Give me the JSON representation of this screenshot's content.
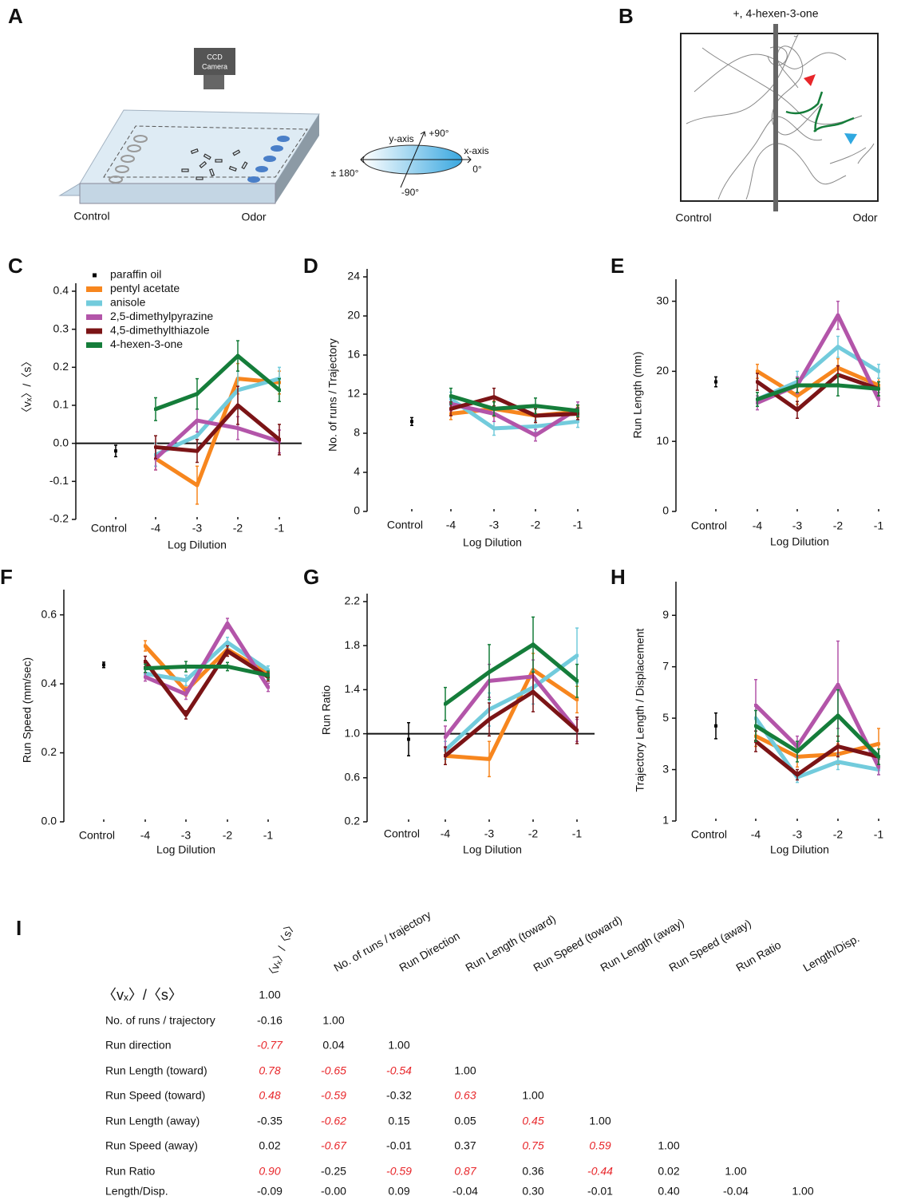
{
  "panels": [
    {
      "label": "A",
      "texts": [
        "CCD",
        "Camera",
        "y-axis",
        "+90°",
        "x-axis",
        "± 180°",
        "0°",
        "-90°",
        "Control",
        "Odor"
      ]
    },
    {
      "label": "B",
      "title": "+, 4-hexen-3-one",
      "left": "Control",
      "right": "Odor"
    }
  ],
  "chart_data": [
    {
      "type": "line",
      "panel": "C",
      "ylabel": "〈vₓ〉/〈s〉",
      "xlabel": "Log Dilution",
      "categories": [
        "Control",
        "-4",
        "-3",
        "-2",
        "-1"
      ],
      "ylim": [
        -0.2,
        0.4
      ],
      "yticks": [
        -0.2,
        -0.1,
        {
          "value": 0,
          "label": "0.0"
        },
        0.1,
        0.2,
        0.3,
        0.4
      ],
      "hline": 0,
      "legend": "upper left",
      "series": [
        {
          "name": "paraffin oil",
          "color": "#000000",
          "values": [
            -0.02,
            null,
            null,
            null,
            null
          ],
          "errors": [
            0.015,
            null,
            null,
            null,
            null
          ]
        },
        {
          "name": "pentyl acetate",
          "color": "#f7861e",
          "values": [
            null,
            -0.04,
            -0.11,
            0.17,
            0.16
          ],
          "errors": [
            null,
            0.03,
            0.05,
            0.04,
            0.03
          ]
        },
        {
          "name": "anisole",
          "color": "#72cbdc",
          "values": [
            null,
            -0.03,
            0.02,
            0.14,
            0.17
          ],
          "errors": [
            null,
            0.03,
            0.04,
            0.05,
            0.03
          ]
        },
        {
          "name": "2,5-dimethylpyrazine",
          "color": "#b355a9",
          "values": [
            null,
            -0.04,
            0.06,
            0.04,
            0.005
          ],
          "errors": [
            null,
            0.03,
            0.03,
            0.03,
            0.03
          ]
        },
        {
          "name": "4,5-dimethylthiazole",
          "color": "#7b1416",
          "values": [
            null,
            -0.01,
            -0.02,
            0.1,
            0.01
          ],
          "errors": [
            null,
            0.03,
            0.03,
            0.05,
            0.04
          ]
        },
        {
          "name": "4-hexen-3-one",
          "color": "#157d3a",
          "values": [
            null,
            0.09,
            0.13,
            0.23,
            0.14
          ],
          "errors": [
            null,
            0.03,
            0.04,
            0.04,
            0.03
          ]
        }
      ]
    },
    {
      "type": "line",
      "panel": "D",
      "ylabel": "No. of runs / Trajectory",
      "xlabel": "Log Dilution",
      "categories": [
        "Control",
        "-4",
        "-3",
        "-2",
        "-1"
      ],
      "ylim": [
        0,
        24
      ],
      "yticks": [
        0,
        4,
        8,
        12,
        16,
        20,
        24
      ],
      "series": [
        {
          "color": "#000000",
          "values": [
            9.2,
            null,
            null,
            null,
            null
          ],
          "errors": [
            0.4,
            null,
            null,
            null,
            null
          ]
        },
        {
          "color": "#f7861e",
          "values": [
            null,
            10,
            10.5,
            9.8,
            10.2
          ],
          "errors": [
            null,
            0.6,
            0.8,
            0.7,
            0.6
          ]
        },
        {
          "color": "#72cbdc",
          "values": [
            null,
            11.5,
            8.5,
            8.7,
            9.2
          ],
          "errors": [
            null,
            0.7,
            0.7,
            0.6,
            0.6
          ]
        },
        {
          "color": "#b355a9",
          "values": [
            null,
            11,
            10,
            7.8,
            10.5
          ],
          "errors": [
            null,
            0.7,
            0.8,
            0.6,
            0.7
          ]
        },
        {
          "color": "#7b1416",
          "values": [
            null,
            10.5,
            11.7,
            9.8,
            10
          ],
          "errors": [
            null,
            0.7,
            0.9,
            0.7,
            0.6
          ]
        },
        {
          "color": "#157d3a",
          "values": [
            null,
            11.8,
            10.5,
            10.8,
            10.3
          ],
          "errors": [
            null,
            0.8,
            0.7,
            0.8,
            0.6
          ]
        }
      ]
    },
    {
      "type": "line",
      "panel": "E",
      "ylabel": "Run Length (mm)",
      "xlabel": "Log Dilution",
      "categories": [
        "Control",
        "-4",
        "-3",
        "-2",
        "-1"
      ],
      "ylim": [
        0,
        32
      ],
      "yticks": [
        0,
        10,
        20,
        30
      ],
      "series": [
        {
          "color": "#000000",
          "values": [
            18.5,
            null,
            null,
            null,
            null
          ],
          "errors": [
            0.7,
            null,
            null,
            null,
            null
          ]
        },
        {
          "color": "#f7861e",
          "values": [
            null,
            20,
            16.5,
            20.5,
            18
          ],
          "errors": [
            null,
            1,
            1.2,
            1.3,
            1
          ]
        },
        {
          "color": "#72cbdc",
          "values": [
            null,
            16,
            18.5,
            23.5,
            20
          ],
          "errors": [
            null,
            1,
            1.5,
            1.5,
            1
          ]
        },
        {
          "color": "#b355a9",
          "values": [
            null,
            15.5,
            18,
            28,
            16
          ],
          "errors": [
            null,
            1,
            1.2,
            2,
            1
          ]
        },
        {
          "color": "#7b1416",
          "values": [
            null,
            18.5,
            14.5,
            19.5,
            17.5
          ],
          "errors": [
            null,
            1.2,
            1.2,
            1.3,
            1
          ]
        },
        {
          "color": "#157d3a",
          "values": [
            null,
            16,
            18,
            18,
            17.5
          ],
          "errors": [
            null,
            1,
            1,
            1.5,
            1
          ]
        }
      ]
    },
    {
      "type": "line",
      "panel": "F",
      "ylabel": "Run Speed (mm/sec)",
      "xlabel": "Log Dilution",
      "categories": [
        "Control",
        "-4",
        "-3",
        "-2",
        "-1"
      ],
      "ylim": [
        0,
        0.65
      ],
      "yticks": [
        {
          "value": 0,
          "label": "0.0"
        },
        0.2,
        0.4,
        0.6
      ],
      "series": [
        {
          "color": "#000000",
          "values": [
            0.455,
            null,
            null,
            null,
            null
          ],
          "errors": [
            0.008,
            null,
            null,
            null,
            null
          ]
        },
        {
          "color": "#f7861e",
          "values": [
            null,
            0.51,
            0.38,
            0.5,
            0.43
          ],
          "errors": [
            null,
            0.015,
            0.015,
            0.015,
            0.012
          ]
        },
        {
          "color": "#72cbdc",
          "values": [
            null,
            0.43,
            0.41,
            0.52,
            0.44
          ],
          "errors": [
            null,
            0.012,
            0.015,
            0.015,
            0.012
          ]
        },
        {
          "color": "#b355a9",
          "values": [
            null,
            0.42,
            0.37,
            0.575,
            0.39
          ],
          "errors": [
            null,
            0.012,
            0.015,
            0.015,
            0.012
          ]
        },
        {
          "color": "#7b1416",
          "values": [
            null,
            0.465,
            0.31,
            0.495,
            0.42
          ],
          "errors": [
            null,
            0.015,
            0.012,
            0.015,
            0.012
          ]
        },
        {
          "color": "#157d3a",
          "values": [
            null,
            0.445,
            0.45,
            0.45,
            0.425
          ],
          "errors": [
            null,
            0.012,
            0.015,
            0.012,
            0.012
          ]
        }
      ]
    },
    {
      "type": "line",
      "panel": "G",
      "ylabel": "Run Ratio",
      "xlabel": "Log Dilution",
      "categories": [
        "Control",
        "-4",
        "-3",
        "-2",
        "-1"
      ],
      "ylim": [
        0.2,
        2.2
      ],
      "yticks": [
        0.2,
        0.6,
        {
          "value": 1,
          "label": "1.0"
        },
        1.4,
        1.8,
        2.2
      ],
      "hline": 1,
      "series": [
        {
          "color": "#000000",
          "values": [
            0.95,
            null,
            null,
            null,
            null
          ],
          "errors": [
            0.15,
            null,
            null,
            null,
            null
          ]
        },
        {
          "color": "#f7861e",
          "values": [
            null,
            0.8,
            0.77,
            1.58,
            1.31
          ],
          "errors": [
            null,
            0.08,
            0.16,
            0.15,
            0.12
          ]
        },
        {
          "color": "#72cbdc",
          "values": [
            null,
            0.85,
            1.22,
            1.42,
            1.71
          ],
          "errors": [
            null,
            0.08,
            0.15,
            0.15,
            0.25
          ]
        },
        {
          "color": "#b355a9",
          "values": [
            null,
            0.97,
            1.48,
            1.52,
            1.03
          ],
          "errors": [
            null,
            0.1,
            0.15,
            0.15,
            0.1
          ]
        },
        {
          "color": "#7b1416",
          "values": [
            null,
            0.8,
            1.13,
            1.38,
            1.03
          ],
          "errors": [
            null,
            0.08,
            0.15,
            0.18,
            0.12
          ]
        },
        {
          "color": "#157d3a",
          "values": [
            null,
            1.27,
            1.56,
            1.81,
            1.48
          ],
          "errors": [
            null,
            0.15,
            0.25,
            0.25,
            0.15
          ]
        }
      ]
    },
    {
      "type": "line",
      "panel": "H",
      "ylabel": "Trajectory Length / Displacement",
      "xlabel": "Log Dilution",
      "categories": [
        "Control",
        "-4",
        "-3",
        "-2",
        "-1"
      ],
      "ylim": [
        1,
        10
      ],
      "yticks": [
        1,
        3,
        5,
        7,
        9
      ],
      "series": [
        {
          "color": "#000000",
          "values": [
            4.7,
            null,
            null,
            null,
            null
          ],
          "errors": [
            0.5,
            null,
            null,
            null,
            null
          ]
        },
        {
          "color": "#f7861e",
          "values": [
            null,
            4.3,
            3.5,
            3.6,
            4
          ],
          "errors": [
            null,
            0.4,
            0.4,
            0.4,
            0.6
          ]
        },
        {
          "color": "#72cbdc",
          "values": [
            null,
            5,
            2.7,
            3.3,
            3
          ],
          "errors": [
            null,
            0.5,
            0.2,
            0.3,
            0.2
          ]
        },
        {
          "color": "#b355a9",
          "values": [
            null,
            5.5,
            3.9,
            6.3,
            3.1
          ],
          "errors": [
            null,
            1,
            0.4,
            1.7,
            0.3
          ]
        },
        {
          "color": "#7b1416",
          "values": [
            null,
            4.1,
            2.8,
            3.9,
            3.5
          ],
          "errors": [
            null,
            0.4,
            0.2,
            0.4,
            0.3
          ]
        },
        {
          "color": "#157d3a",
          "values": [
            null,
            4.7,
            3.7,
            5.1,
            3.5
          ],
          "errors": [
            null,
            0.6,
            0.4,
            1,
            0.3
          ]
        }
      ]
    }
  ],
  "table": {
    "panel": "I",
    "highlight_color": "#e8262a",
    "columns": [
      "〈vₓ〉/〈s〉",
      "No. of runs / trajectory",
      "Run Direction",
      "Run Length (toward)",
      "Run Speed (toward)",
      "Run Length (away)",
      "Run Speed (away)",
      "Run Ratio",
      "Length/Disp."
    ],
    "rows": [
      {
        "label": "〈vₓ〉/〈s〉",
        "cells": [
          "1.00"
        ]
      },
      {
        "label": "No. of runs / trajectory",
        "cells": [
          "-0.16",
          "1.00"
        ]
      },
      {
        "label": "Run direction",
        "cells": [
          {
            "text": "-0.77",
            "highlight": true
          },
          "0.04",
          "1.00"
        ]
      },
      {
        "label": "Run Length (toward)",
        "cells": [
          {
            "text": "0.78",
            "highlight": true
          },
          {
            "text": "-0.65",
            "highlight": true
          },
          {
            "text": "-0.54",
            "highlight": true
          },
          "1.00"
        ]
      },
      {
        "label": "Run Speed (toward)",
        "cells": [
          {
            "text": "0.48",
            "highlight": true
          },
          {
            "text": "-0.59",
            "highlight": true
          },
          "-0.32",
          {
            "text": "0.63",
            "highlight": true
          },
          "1.00"
        ]
      },
      {
        "label": "Run Length (away)",
        "cells": [
          "-0.35",
          {
            "text": "-0.62",
            "highlight": true
          },
          "0.15",
          "0.05",
          {
            "text": "0.45",
            "highlight": true
          },
          "1.00"
        ]
      },
      {
        "label": "Run Speed (away)",
        "cells": [
          "0.02",
          {
            "text": "-0.67",
            "highlight": true
          },
          "-0.01",
          "0.37",
          {
            "text": "0.75",
            "highlight": true
          },
          {
            "text": "0.59",
            "highlight": true
          },
          "1.00"
        ]
      },
      {
        "label": "Run Ratio",
        "cells": [
          {
            "text": "0.90",
            "highlight": true
          },
          "-0.25",
          {
            "text": "-0.59",
            "highlight": true
          },
          {
            "text": "0.87",
            "highlight": true
          },
          "0.36",
          {
            "text": "-0.44",
            "highlight": true
          },
          "0.02",
          "1.00"
        ]
      },
      {
        "label": "Length/Disp.",
        "cells": [
          "-0.09",
          "-0.00",
          "0.09",
          "-0.04",
          "0.30",
          "-0.01",
          "0.40",
          "-0.04",
          "1.00"
        ]
      }
    ]
  }
}
